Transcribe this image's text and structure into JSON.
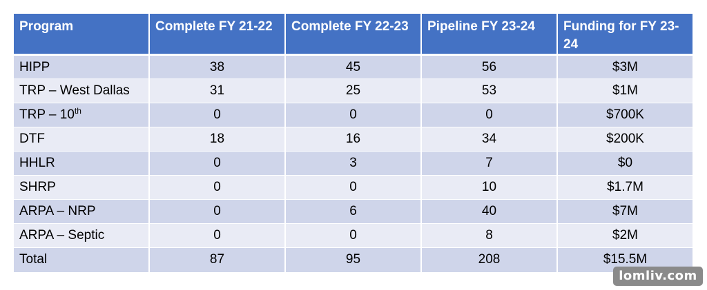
{
  "table": {
    "headers": [
      "Program",
      "Complete FY 21-22",
      "Complete FY 22-23",
      "Pipeline FY 23-24",
      "Funding for FY 23-24"
    ],
    "rows": [
      {
        "program": "HIPP",
        "sup": "",
        "c1": "38",
        "c2": "45",
        "c3": "56",
        "funding": "$3M"
      },
      {
        "program": "TRP – West Dallas",
        "sup": "",
        "c1": "31",
        "c2": "25",
        "c3": "53",
        "funding": "$1M"
      },
      {
        "program": "TRP – 10",
        "sup": "th",
        "c1": "0",
        "c2": "0",
        "c3": "0",
        "funding": "$700K"
      },
      {
        "program": "DTF",
        "sup": "",
        "c1": "18",
        "c2": "16",
        "c3": "34",
        "funding": "$200K"
      },
      {
        "program": "HHLR",
        "sup": "",
        "c1": "0",
        "c2": "3",
        "c3": "7",
        "funding": "$0"
      },
      {
        "program": "SHRP",
        "sup": "",
        "c1": "0",
        "c2": "0",
        "c3": "10",
        "funding": "$1.7M"
      },
      {
        "program": "ARPA – NRP",
        "sup": "",
        "c1": "0",
        "c2": "6",
        "c3": "40",
        "funding": "$7M"
      },
      {
        "program": "ARPA – Septic",
        "sup": "",
        "c1": "0",
        "c2": "0",
        "c3": "8",
        "funding": "$2M"
      },
      {
        "program": "Total",
        "sup": "",
        "c1": "87",
        "c2": "95",
        "c3": "208",
        "funding": "$15.5M"
      }
    ]
  },
  "colors": {
    "header_bg": "#4472c4",
    "row_odd": "#cfd5ea",
    "row_even": "#e9ebf5"
  },
  "watermark": "lomliv.com"
}
